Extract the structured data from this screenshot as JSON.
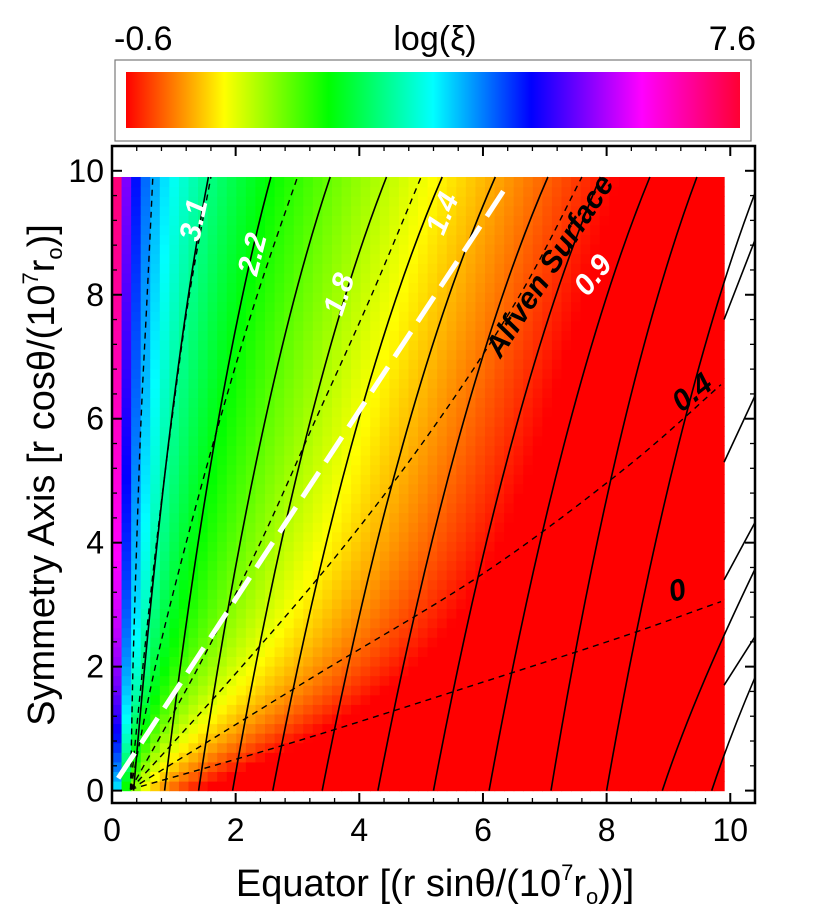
{
  "chart_data": {
    "type": "heatmap",
    "colorbar": {
      "title": "log(ξ)",
      "min_label": "-0.6",
      "max_label": "7.6",
      "vmin": -0.6,
      "vmax": 7.6,
      "colormap": [
        "#ff0000",
        "#ffff00",
        "#00ff00",
        "#00ffff",
        "#0000ff",
        "#ff00ff",
        "#ff0033"
      ]
    },
    "xlabel": "Equator [(r sinθ/(10⁷rₒ))]",
    "ylabel": "Symmetry Axis [r cosθ/(10⁷rₒ)]",
    "xlim": [
      0,
      10.4
    ],
    "ylim": [
      -0.2,
      10.4
    ],
    "data_extent": {
      "x": [
        0,
        9.9
      ],
      "y": [
        0,
        9.9
      ]
    },
    "xticks": [
      0,
      2,
      4,
      6,
      8,
      10
    ],
    "yticks": [
      0,
      2,
      4,
      6,
      8,
      10
    ],
    "xtick_labels": [
      "0",
      "2",
      "4",
      "6",
      "8",
      "10"
    ],
    "ytick_labels": [
      "0",
      "2",
      "4",
      "6",
      "8",
      "10"
    ],
    "field_lines": {
      "style": "solid",
      "color": "#000000",
      "x_at_top": [
        1.56,
        2.57,
        3.53,
        4.44,
        5.34,
        6.2,
        7.05,
        7.9,
        8.7,
        9.46,
        10.5
      ],
      "x_at_bottom": [
        0.35,
        0.85,
        1.4,
        1.95,
        2.6,
        3.4,
        4.3,
        5.2,
        6.1,
        7.1,
        8.0,
        8.9,
        9.7
      ]
    },
    "dashed_contours": [
      {
        "label": "3.1",
        "points": [
          [
            0.3,
            0.02
          ],
          [
            0.34,
            2
          ],
          [
            0.4,
            4
          ],
          [
            0.47,
            6
          ],
          [
            0.57,
            8
          ],
          [
            0.66,
            9.9
          ]
        ]
      },
      {
        "label": "2.2",
        "points": [
          [
            0.3,
            0.02
          ],
          [
            0.5,
            2
          ],
          [
            0.72,
            4
          ],
          [
            0.97,
            6
          ],
          [
            1.25,
            8
          ],
          [
            1.6,
            9.9
          ]
        ]
      },
      {
        "label": "1.8",
        "points": [
          [
            0.3,
            0.02
          ],
          [
            0.7,
            2
          ],
          [
            1.2,
            4
          ],
          [
            1.75,
            6
          ],
          [
            2.35,
            8
          ],
          [
            3.0,
            9.9
          ]
        ]
      },
      {
        "label": "1.4",
        "points": [
          [
            0.3,
            0.02
          ],
          [
            1.4,
            2
          ],
          [
            2.4,
            4
          ],
          [
            3.3,
            6
          ],
          [
            4.2,
            8
          ],
          [
            5.0,
            9.9
          ]
        ]
      },
      {
        "label": "0.9",
        "points": [
          [
            0.3,
            0.02
          ],
          [
            2.1,
            2
          ],
          [
            3.8,
            4
          ],
          [
            5.3,
            6
          ],
          [
            6.6,
            8
          ],
          [
            7.6,
            9.9
          ]
        ]
      },
      {
        "label": "0.4",
        "points": [
          [
            0.3,
            0.02
          ],
          [
            3.2,
            1.8
          ],
          [
            6.0,
            3.5
          ],
          [
            8.3,
            5.2
          ],
          [
            9.85,
            6.55
          ]
        ]
      },
      {
        "label": "0",
        "points": [
          [
            0.3,
            0.02
          ],
          [
            3.0,
            0.8
          ],
          [
            6.0,
            1.75
          ],
          [
            8.3,
            2.5
          ],
          [
            9.85,
            3.05
          ]
        ]
      }
    ],
    "alfven_surface": {
      "label": "Alfven Surface",
      "style": "white long-dashed line",
      "points": [
        [
          0.1,
          0.2
        ],
        [
          6.38,
          9.75
        ]
      ]
    },
    "annotations": [
      {
        "text": "3.1",
        "x": 1.35,
        "y": 9.2,
        "color": "#ffffff",
        "rotation_deg": -78
      },
      {
        "text": "2.2",
        "x": 2.3,
        "y": 8.65,
        "color": "#ffffff",
        "rotation_deg": -76
      },
      {
        "text": "1.8",
        "x": 3.7,
        "y": 8.0,
        "color": "#ffffff",
        "rotation_deg": -72
      },
      {
        "text": "1.4",
        "x": 5.37,
        "y": 9.3,
        "color": "#ffffff",
        "rotation_deg": -68
      },
      {
        "text": "0.9",
        "x": 7.8,
        "y": 8.3,
        "color": "#ffffff",
        "rotation_deg": -52
      },
      {
        "text": "0.4",
        "x": 9.4,
        "y": 6.4,
        "color": "#000000",
        "rotation_deg": -38
      },
      {
        "text": "0",
        "x": 9.15,
        "y": 3.2,
        "color": "#000000",
        "rotation_deg": -15
      },
      {
        "text": "Alfven Surface",
        "x": 7.1,
        "y": 8.45,
        "color": "#000000",
        "rotation_deg": -57
      }
    ]
  }
}
